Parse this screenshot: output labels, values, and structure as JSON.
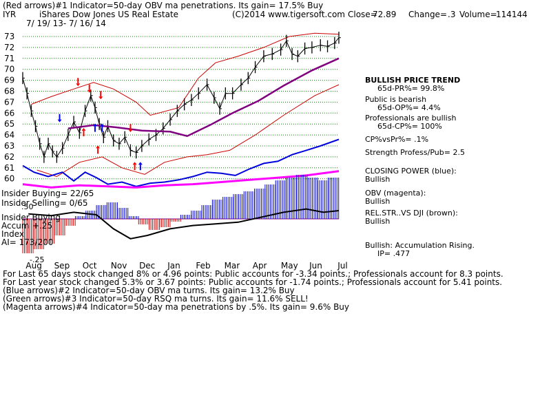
{
  "header": {
    "line1": "(Red arrows)#1 Indicator=50-day OBV ma penetrations. Its gain= 17.5% Buy",
    "ticker": "IYR",
    "name": "iShares Dow Jones US Real Estate",
    "copyright": "(C)2014 www.tigersoft.com",
    "close_label": "Close=",
    "close": "72.89",
    "change_label": "Change=",
    "change": ".3",
    "volume_label": "Volume=",
    "volume": "114144",
    "date_range": "7/ 19/ 13-  7/ 16/ 14"
  },
  "right_panel": {
    "l1": "BULLISH PRICE TREND",
    "l2": "65d-PR%= 99.8%",
    "l3": "Public is bearish",
    "l4": "65d-OP%= 4.4%",
    "l5": "Professionals are bullish",
    "l6": "65d-CP%= 100%",
    "l7": "CP%vsPr%=  .1%",
    "l8": "Strength Profess/Pub= 2.5",
    "l9": "CLOSING POWER (blue):",
    "l10": "Bullish",
    "l11": "OBV (magenta):",
    "l12": "Bullish",
    "l13": "REL.STR..VS DJI (brown):",
    "l14": "Bullish",
    "l15": "Bullish: Accumulation Rising.",
    "l16": "IP=  .477"
  },
  "lower_labels": {
    "insider_buying": "Insider Buying= 22/65",
    "insider_selling": "Insider Selling= 0/65",
    "accum_title": "Insider Buying",
    "accum_label": "Accum",
    "accum_plus": "+.25",
    "index_label": "Index",
    "ai": "AI= 173/200",
    "accum_minus": "-.25",
    "tick_50": ".50"
  },
  "footer": {
    "f1": "For Last 65 days stock changed   8% or  4.96 points:  Public accounts for -3.34 points.;  Professionals account for  8.3 points.",
    "f2": "For Last year stock changed  5.3% or  3.67 points:  Public accounts for -1.74 points.;  Professionals account for  5.41 points.",
    "f3": "(Blue arrows)#2 Indicator=50-day OBV ma turns. Its gain= 13.2% Buy",
    "f4": "(Green arrows)#3 Indicator=50-day RSQ ma turns. Its gain= 11.6% SELL!",
    "f5": "(Magenta arrows)#4 Indicator=50-day ma penetrations by .5%. Its gain= 9.6% Buy"
  },
  "colors": {
    "price": "#000000",
    "ma50": "#800080",
    "bands": "#cc0000",
    "closing_power": "#0000dd",
    "obv": "#ff00ff",
    "grid": "#008000",
    "accum_pos": "#0000cc",
    "accum_neg": "#cc0000",
    "arrow_red": "#ff0000",
    "arrow_blue": "#0000ff"
  },
  "chart_data": {
    "type": "line",
    "ylim": [
      59,
      73.5
    ],
    "yticks": [
      60,
      61,
      62,
      63,
      64,
      65,
      66,
      67,
      68,
      69,
      70,
      71,
      72,
      73
    ],
    "months": [
      "Aug",
      "Sep",
      "Oct",
      "Nov",
      "Dec",
      "Jan",
      "Feb",
      "Mar",
      "Apr",
      "May",
      "Jun",
      "Jul"
    ],
    "price_close": [
      {
        "m": 0.0,
        "v": 69.2
      },
      {
        "m": 0.15,
        "v": 67.8
      },
      {
        "m": 0.3,
        "v": 66.2
      },
      {
        "m": 0.45,
        "v": 64.8
      },
      {
        "m": 0.6,
        "v": 63.2
      },
      {
        "m": 0.75,
        "v": 62.0
      },
      {
        "m": 0.9,
        "v": 63.2
      },
      {
        "m": 1.05,
        "v": 62.5
      },
      {
        "m": 1.2,
        "v": 62.0
      },
      {
        "m": 1.4,
        "v": 62.8
      },
      {
        "m": 1.6,
        "v": 64.0
      },
      {
        "m": 1.8,
        "v": 65.2
      },
      {
        "m": 2.0,
        "v": 64.2
      },
      {
        "m": 2.2,
        "v": 66.2
      },
      {
        "m": 2.4,
        "v": 67.6
      },
      {
        "m": 2.55,
        "v": 66.5
      },
      {
        "m": 2.7,
        "v": 65.0
      },
      {
        "m": 2.85,
        "v": 63.8
      },
      {
        "m": 3.0,
        "v": 64.8
      },
      {
        "m": 3.2,
        "v": 63.5
      },
      {
        "m": 3.4,
        "v": 63.2
      },
      {
        "m": 3.6,
        "v": 63.8
      },
      {
        "m": 3.8,
        "v": 62.6
      },
      {
        "m": 4.0,
        "v": 62.4
      },
      {
        "m": 4.2,
        "v": 63.0
      },
      {
        "m": 4.45,
        "v": 63.6
      },
      {
        "m": 4.7,
        "v": 64.0
      },
      {
        "m": 4.95,
        "v": 64.6
      },
      {
        "m": 5.2,
        "v": 65.4
      },
      {
        "m": 5.45,
        "v": 66.2
      },
      {
        "m": 5.7,
        "v": 66.8
      },
      {
        "m": 5.95,
        "v": 67.2
      },
      {
        "m": 6.2,
        "v": 67.8
      },
      {
        "m": 6.5,
        "v": 68.6
      },
      {
        "m": 6.75,
        "v": 67.4
      },
      {
        "m": 6.95,
        "v": 66.4
      },
      {
        "m": 7.15,
        "v": 67.8
      },
      {
        "m": 7.4,
        "v": 67.8
      },
      {
        "m": 7.7,
        "v": 68.6
      },
      {
        "m": 7.95,
        "v": 69.2
      },
      {
        "m": 8.2,
        "v": 70.2
      },
      {
        "m": 8.5,
        "v": 71.2
      },
      {
        "m": 8.8,
        "v": 71.4
      },
      {
        "m": 9.1,
        "v": 71.8
      },
      {
        "m": 9.3,
        "v": 72.6
      },
      {
        "m": 9.5,
        "v": 71.4
      },
      {
        "m": 9.7,
        "v": 71.2
      },
      {
        "m": 9.95,
        "v": 71.9
      },
      {
        "m": 10.2,
        "v": 72.0
      },
      {
        "m": 10.5,
        "v": 72.2
      },
      {
        "m": 10.75,
        "v": 72.1
      },
      {
        "m": 11.0,
        "v": 72.4
      },
      {
        "m": 11.15,
        "v": 72.89
      }
    ],
    "ma50": [
      {
        "m": 1.6,
        "v": 64.6
      },
      {
        "m": 2.5,
        "v": 64.9
      },
      {
        "m": 3.3,
        "v": 64.7
      },
      {
        "m": 4.2,
        "v": 64.4
      },
      {
        "m": 5.2,
        "v": 64.3
      },
      {
        "m": 5.8,
        "v": 63.9
      },
      {
        "m": 6.6,
        "v": 64.9
      },
      {
        "m": 7.4,
        "v": 66.0
      },
      {
        "m": 8.3,
        "v": 67.1
      },
      {
        "m": 9.2,
        "v": 68.5
      },
      {
        "m": 10.2,
        "v": 69.9
      },
      {
        "m": 11.15,
        "v": 71.0
      }
    ],
    "band_upper": [
      {
        "m": 0.3,
        "v": 66.8
      },
      {
        "m": 1.0,
        "v": 67.5
      },
      {
        "m": 1.8,
        "v": 68.2
      },
      {
        "m": 2.5,
        "v": 68.8
      },
      {
        "m": 3.2,
        "v": 68.2
      },
      {
        "m": 4.0,
        "v": 67.0
      },
      {
        "m": 4.5,
        "v": 65.8
      },
      {
        "m": 5.5,
        "v": 66.5
      },
      {
        "m": 6.2,
        "v": 69.2
      },
      {
        "m": 6.8,
        "v": 70.6
      },
      {
        "m": 7.6,
        "v": 71.2
      },
      {
        "m": 8.5,
        "v": 72.0
      },
      {
        "m": 9.4,
        "v": 73.0
      },
      {
        "m": 10.3,
        "v": 73.3
      },
      {
        "m": 11.15,
        "v": 73.2
      }
    ],
    "band_lower": [
      {
        "m": 0.5,
        "v": 60.8
      },
      {
        "m": 1.2,
        "v": 60.2
      },
      {
        "m": 2.0,
        "v": 61.5
      },
      {
        "m": 2.8,
        "v": 62.0
      },
      {
        "m": 3.5,
        "v": 61.0
      },
      {
        "m": 4.3,
        "v": 60.4
      },
      {
        "m": 5.0,
        "v": 61.5
      },
      {
        "m": 5.8,
        "v": 62.0
      },
      {
        "m": 6.5,
        "v": 62.2
      },
      {
        "m": 7.3,
        "v": 62.6
      },
      {
        "m": 8.2,
        "v": 64.0
      },
      {
        "m": 9.2,
        "v": 65.8
      },
      {
        "m": 10.3,
        "v": 67.6
      },
      {
        "m": 11.15,
        "v": 68.6
      }
    ],
    "closing_power": [
      {
        "m": 0.0,
        "v": 61.2
      },
      {
        "m": 0.4,
        "v": 60.6
      },
      {
        "m": 0.9,
        "v": 60.2
      },
      {
        "m": 1.4,
        "v": 60.6
      },
      {
        "m": 1.8,
        "v": 59.8
      },
      {
        "m": 2.2,
        "v": 60.6
      },
      {
        "m": 2.6,
        "v": 60.1
      },
      {
        "m": 3.0,
        "v": 59.5
      },
      {
        "m": 3.5,
        "v": 59.7
      },
      {
        "m": 4.0,
        "v": 59.3
      },
      {
        "m": 4.5,
        "v": 59.6
      },
      {
        "m": 5.0,
        "v": 59.7
      },
      {
        "m": 5.5,
        "v": 59.9
      },
      {
        "m": 6.0,
        "v": 60.2
      },
      {
        "m": 6.5,
        "v": 60.6
      },
      {
        "m": 7.0,
        "v": 60.5
      },
      {
        "m": 7.5,
        "v": 60.3
      },
      {
        "m": 8.0,
        "v": 60.9
      },
      {
        "m": 8.5,
        "v": 61.4
      },
      {
        "m": 9.0,
        "v": 61.6
      },
      {
        "m": 9.5,
        "v": 62.2
      },
      {
        "m": 10.0,
        "v": 62.6
      },
      {
        "m": 10.5,
        "v": 63.0
      },
      {
        "m": 11.15,
        "v": 63.6
      }
    ],
    "obv": [
      {
        "m": 0.0,
        "v": 59.5
      },
      {
        "m": 1.0,
        "v": 59.2
      },
      {
        "m": 2.0,
        "v": 59.4
      },
      {
        "m": 3.0,
        "v": 59.3
      },
      {
        "m": 4.0,
        "v": 59.2
      },
      {
        "m": 5.0,
        "v": 59.4
      },
      {
        "m": 6.0,
        "v": 59.5
      },
      {
        "m": 7.0,
        "v": 59.7
      },
      {
        "m": 8.0,
        "v": 59.9
      },
      {
        "m": 9.0,
        "v": 60.1
      },
      {
        "m": 10.0,
        "v": 60.3
      },
      {
        "m": 11.15,
        "v": 60.7
      }
    ],
    "accumulation": [
      -0.25,
      -0.22,
      -0.18,
      -0.12,
      -0.05,
      0.02,
      0.06,
      0.1,
      0.12,
      0.08,
      0.02,
      -0.04,
      -0.08,
      -0.06,
      -0.02,
      0.03,
      0.06,
      0.1,
      0.14,
      0.16,
      0.18,
      0.2,
      0.22,
      0.25,
      0.28,
      0.3,
      0.32,
      0.3,
      0.28,
      0.3
    ],
    "relative_strength": [
      {
        "m": 0.2,
        "v": 0.48
      },
      {
        "m": 1.0,
        "v": 0.46
      },
      {
        "m": 1.8,
        "v": 0.5
      },
      {
        "m": 2.6,
        "v": 0.47
      },
      {
        "m": 3.2,
        "v": 0.3
      },
      {
        "m": 3.8,
        "v": 0.18
      },
      {
        "m": 4.4,
        "v": 0.22
      },
      {
        "m": 5.2,
        "v": 0.3
      },
      {
        "m": 6.0,
        "v": 0.34
      },
      {
        "m": 6.8,
        "v": 0.36
      },
      {
        "m": 7.6,
        "v": 0.38
      },
      {
        "m": 8.4,
        "v": 0.44
      },
      {
        "m": 9.2,
        "v": 0.5
      },
      {
        "m": 10.0,
        "v": 0.54
      },
      {
        "m": 10.6,
        "v": 0.5
      },
      {
        "m": 11.15,
        "v": 0.52
      }
    ],
    "arrows": [
      {
        "m": 1.95,
        "v": 68.9,
        "dir": "down",
        "color": "red"
      },
      {
        "m": 2.35,
        "v": 68.3,
        "dir": "down",
        "color": "red"
      },
      {
        "m": 2.75,
        "v": 67.7,
        "dir": "down",
        "color": "red"
      },
      {
        "m": 1.3,
        "v": 65.6,
        "dir": "down",
        "color": "blue"
      },
      {
        "m": 2.15,
        "v": 64.2,
        "dir": "up",
        "color": "red"
      },
      {
        "m": 2.55,
        "v": 64.6,
        "dir": "up",
        "color": "blue"
      },
      {
        "m": 2.8,
        "v": 64.6,
        "dir": "up",
        "color": "blue"
      },
      {
        "m": 2.65,
        "v": 62.6,
        "dir": "up",
        "color": "red"
      },
      {
        "m": 3.8,
        "v": 64.7,
        "dir": "down",
        "color": "red"
      },
      {
        "m": 3.95,
        "v": 61.1,
        "dir": "up",
        "color": "red"
      },
      {
        "m": 4.15,
        "v": 61.1,
        "dir": "up",
        "color": "blue"
      }
    ]
  }
}
